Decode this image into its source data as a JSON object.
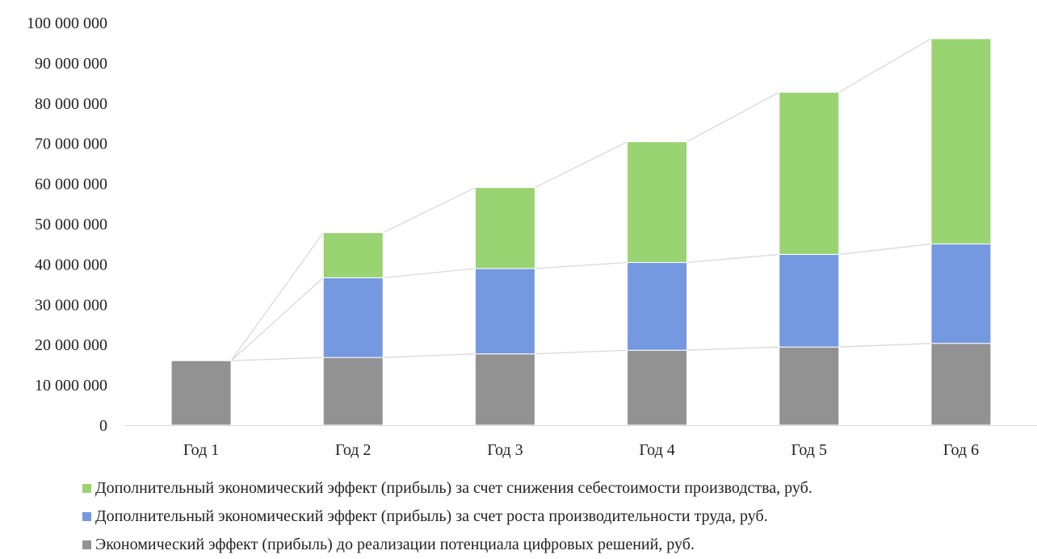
{
  "chart_data": {
    "type": "bar",
    "stacked": true,
    "categories": [
      "Год 1",
      "Год 2",
      "Год 3",
      "Год 4",
      "Год 5",
      "Год 6"
    ],
    "ylim": [
      0,
      100000000
    ],
    "yticks": [
      0,
      10000000,
      20000000,
      30000000,
      40000000,
      50000000,
      60000000,
      70000000,
      80000000,
      90000000,
      100000000
    ],
    "ytick_labels": [
      "0",
      "10 000 000",
      "20 000 000",
      "30 000 000",
      "40 000 000",
      "50 000 000",
      "60 000 000",
      "70 000 000",
      "80 000 000",
      "90 000 000",
      "100 000 000"
    ],
    "series": [
      {
        "name": "Экономический эффект (прибыль) до реализации потенциала цифровых решений, руб.",
        "color": "#929292",
        "values": [
          16000000,
          16800000,
          17700000,
          18600000,
          19400000,
          20300000
        ]
      },
      {
        "name": "Дополнительный экономический эффект (прибыль) за счет роста производительности труда, руб.",
        "color": "#7499e0",
        "values": [
          0,
          19800000,
          21200000,
          21800000,
          23000000,
          24700000
        ]
      },
      {
        "name": "Дополнительный экономический эффект (прибыль) за счет снижения себестоимости производства, руб.",
        "color": "#99d372",
        "values": [
          0,
          11200000,
          20100000,
          30000000,
          40300000,
          51000000
        ]
      }
    ],
    "legend_order": [
      2,
      1,
      0
    ],
    "legend_position": "bottom",
    "series_lines": true,
    "grid": false
  }
}
